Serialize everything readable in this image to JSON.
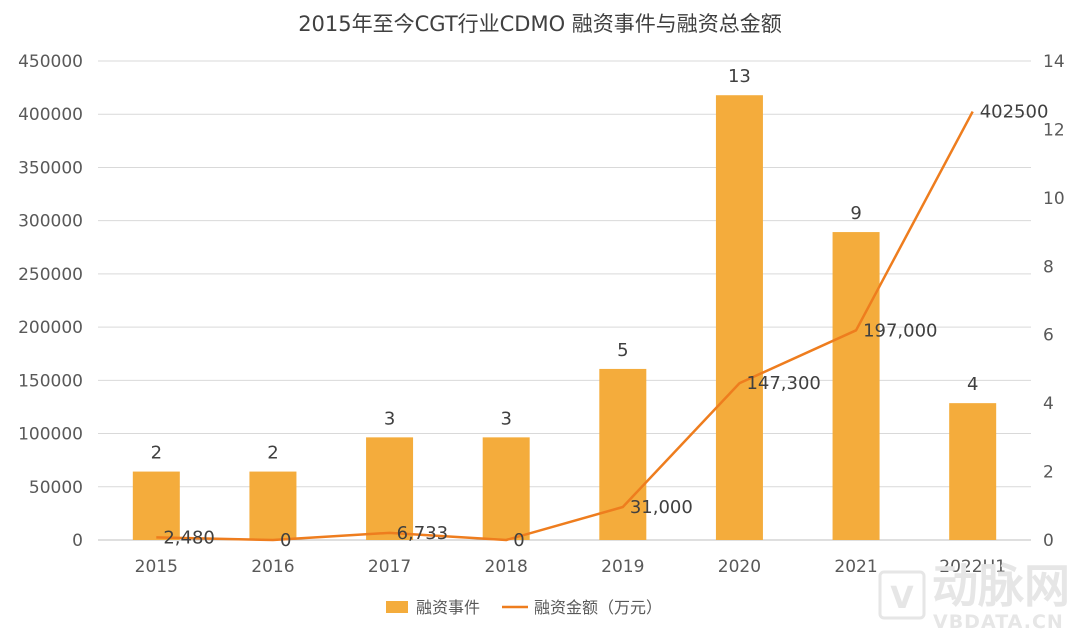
{
  "chart_data": {
    "type": "bar",
    "title": "2015年至今CGT行业CDMO 融资事件与融资总金额",
    "categories": [
      "2015",
      "2016",
      "2017",
      "2018",
      "2019",
      "2020",
      "2021",
      "2022H1"
    ],
    "series": [
      {
        "name": "融资事件",
        "type": "bar",
        "axis": "right",
        "values": [
          2,
          2,
          3,
          3,
          5,
          13,
          9,
          4
        ],
        "labels": [
          "2",
          "2",
          "3",
          "3",
          "5",
          "13",
          "9",
          "4"
        ],
        "color": "#F4AC3C"
      },
      {
        "name": "融资金额（万元）",
        "type": "line",
        "axis": "left",
        "values": [
          2480,
          0,
          6733,
          0,
          31000,
          147300,
          197000,
          402500
        ],
        "labels": [
          "2,480",
          "0",
          "6,733",
          "0",
          "31,000",
          "147,300",
          "197,000",
          "402500"
        ],
        "color": "#EE7D1E"
      }
    ],
    "y_left": {
      "min": 0,
      "max": 450000,
      "step": 50000,
      "tick_labels": [
        "0",
        "50000",
        "100000",
        "150000",
        "200000",
        "250000",
        "300000",
        "350000",
        "400000",
        "450000"
      ]
    },
    "y_right": {
      "min": 0,
      "max": 14,
      "step": 2,
      "tick_labels": [
        "0",
        "2",
        "4",
        "6",
        "8",
        "10",
        "12",
        "14"
      ]
    },
    "grid": true,
    "legend_position": "bottom"
  },
  "watermark": {
    "logo_text": "动脉网",
    "site": "VBDATA.CN"
  }
}
